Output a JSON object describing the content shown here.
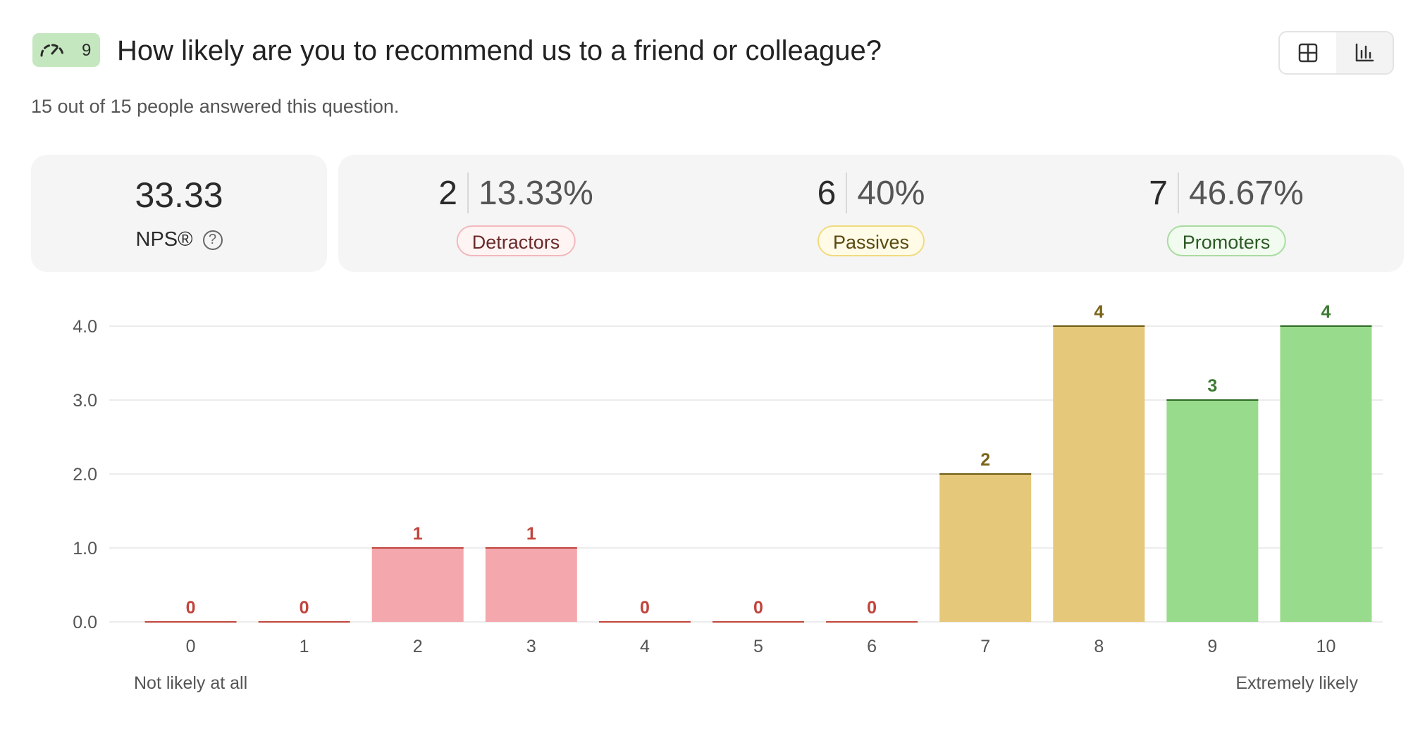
{
  "question": {
    "badge_number": "9",
    "title": "How likely are you to recommend us to a friend or colleague?",
    "answered_text": "15 out of 15 people answered this question."
  },
  "view_toggle": {
    "icons": [
      "table-view-icon",
      "chart-view-icon"
    ],
    "active": "chart"
  },
  "nps": {
    "value": "33.33",
    "label": "NPS®"
  },
  "groups": [
    {
      "count": "2",
      "percent": "13.33%",
      "label": "Detractors"
    },
    {
      "count": "6",
      "percent": "40%",
      "label": "Passives"
    },
    {
      "count": "7",
      "percent": "46.67%",
      "label": "Promoters"
    }
  ],
  "colors": {
    "detractor_fill": "#f4a8ae",
    "detractor_line": "#c0453c",
    "detractor_text": "#c0453c",
    "passive_fill": "#e5c87a",
    "passive_line": "#6f5a13",
    "passive_text": "#7a6418",
    "promoter_fill": "#98db8c",
    "promoter_line": "#2e6a25",
    "promoter_text": "#3c7a32"
  },
  "chart_data": {
    "type": "bar",
    "categories": [
      "0",
      "1",
      "2",
      "3",
      "4",
      "5",
      "6",
      "7",
      "8",
      "9",
      "10"
    ],
    "values": [
      0,
      0,
      1,
      1,
      0,
      0,
      0,
      2,
      4,
      3,
      4
    ],
    "groups": [
      "detractor",
      "detractor",
      "detractor",
      "detractor",
      "detractor",
      "detractor",
      "detractor",
      "passive",
      "passive",
      "promoter",
      "promoter"
    ],
    "yticks": [
      "0.0",
      "1.0",
      "2.0",
      "3.0",
      "4.0"
    ],
    "ylim": [
      0,
      4
    ],
    "grid": true,
    "x_start_label": "Not likely at all",
    "x_end_label": "Extremely likely"
  }
}
